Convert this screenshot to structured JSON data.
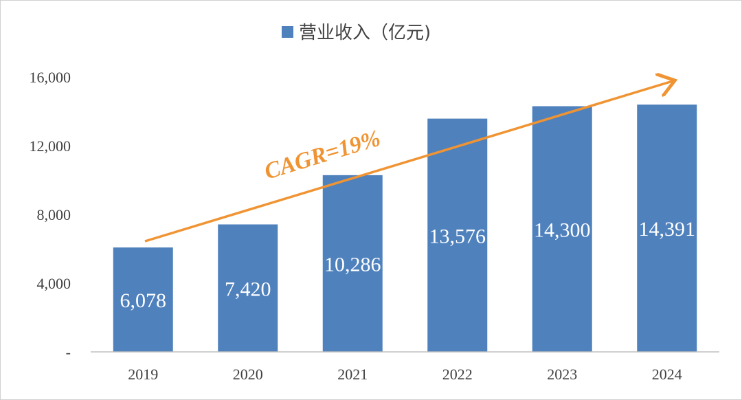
{
  "chart_data": {
    "type": "bar",
    "title": "",
    "categories": [
      "2019",
      "2020",
      "2021",
      "2022",
      "2023",
      "2024"
    ],
    "series": [
      {
        "name": "营业收入（亿元)",
        "values": [
          6078,
          7420,
          10286,
          13576,
          14300,
          14391
        ],
        "labels": [
          "6,078",
          "7,420",
          "10,286",
          "13,576",
          "14,300",
          "14,391"
        ],
        "color": "#4f81bd"
      }
    ],
    "ylim": [
      0,
      16000
    ],
    "yticks": [
      0,
      4000,
      8000,
      12000,
      16000
    ],
    "ytick_labels": [
      "-",
      "4,000",
      "8,000",
      "12,000",
      "16,000"
    ],
    "xlabel": "",
    "ylabel": "",
    "grid": false,
    "legend_position": "top-center",
    "annotation": {
      "text": "CAGR=19%",
      "color": "#f09433",
      "type": "trend-arrow"
    }
  }
}
